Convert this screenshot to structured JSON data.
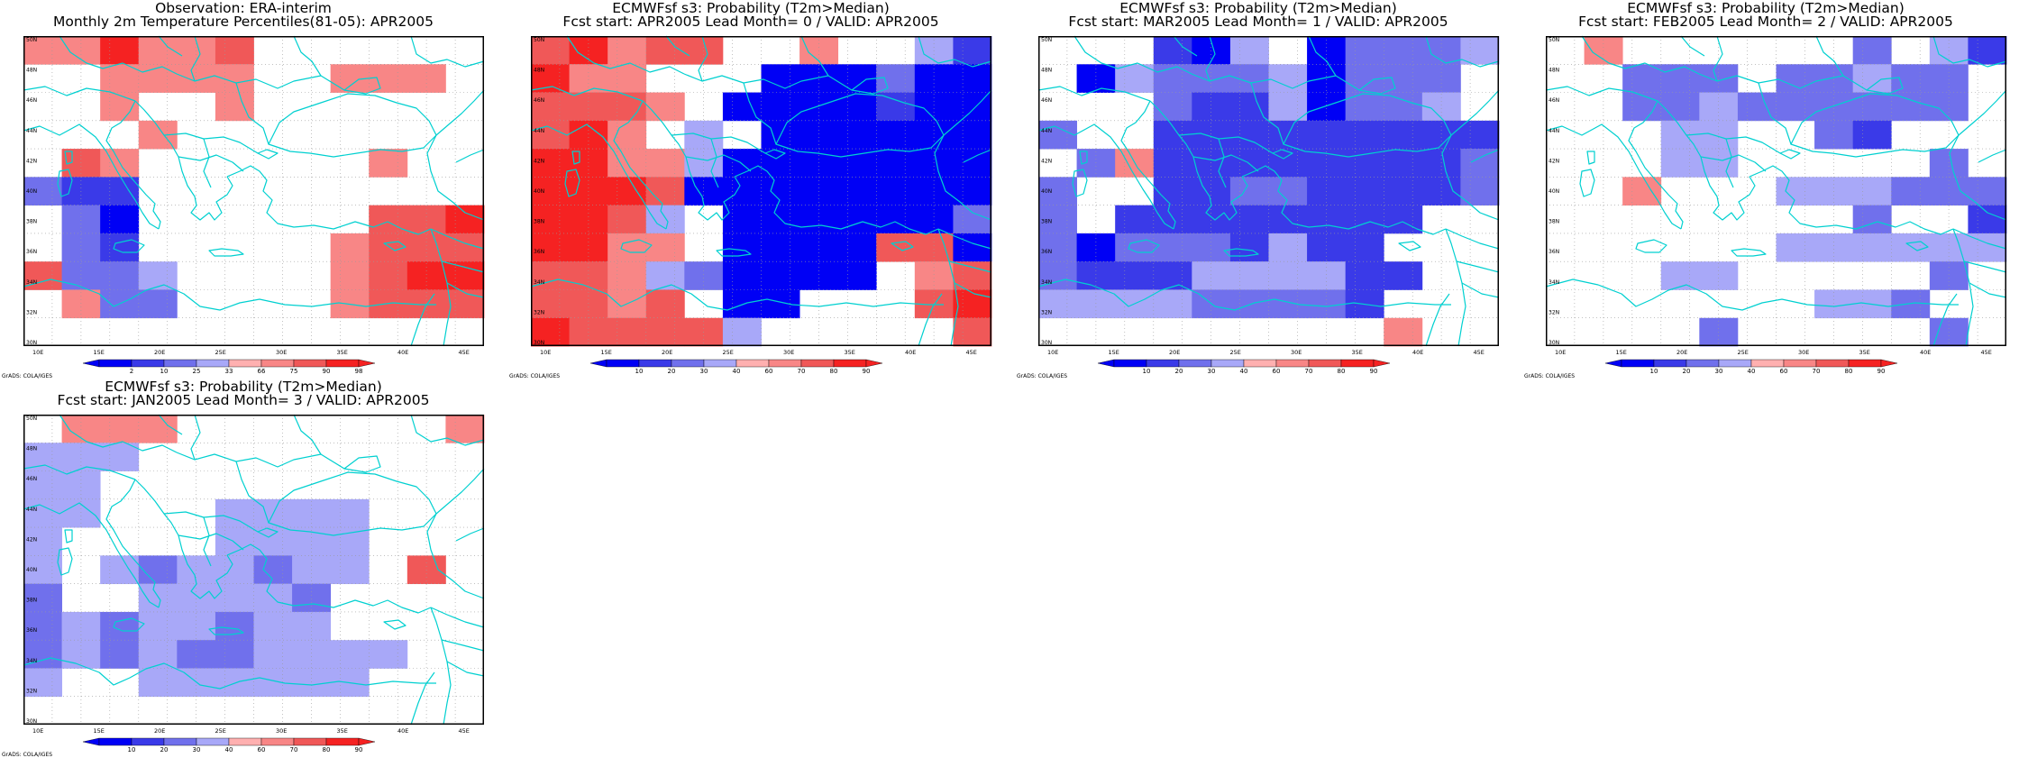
{
  "figure": {
    "grads_credit": "GrADS: COLA/IGES",
    "lat_labels": [
      "30N",
      "32N",
      "34N",
      "36N",
      "38N",
      "40N",
      "42N",
      "44N",
      "46N",
      "48N",
      "50N"
    ],
    "lon_labels": [
      "10E",
      "15E",
      "20E",
      "25E",
      "30E",
      "35E",
      "40E",
      "45E"
    ]
  },
  "colors": {
    "blue": [
      "#0000f5",
      "#3a3ae8",
      "#7070ec",
      "#a8a8f8"
    ],
    "red": [
      "#ffb0b0",
      "#f88686",
      "#f05858",
      "#f52222"
    ],
    "coast": "#00d0d0"
  },
  "panels": [
    {
      "title_line1": "Observation: ERA-interim",
      "title_line2": "Monthly 2m Temperature Percentiles(81-05): APR2005",
      "colorbar_ticks": [
        "2",
        "10",
        "25",
        "33",
        "66",
        "75",
        "90",
        "98"
      ],
      "grid_rows": [
        "668667000000",
        "006666006660",
        "006006000000",
        "000600000000",
        "076000000600",
        "322000000000",
        "031000000778",
        "032000006777",
        "733400006788",
        "063300006777",
        "000000000000"
      ]
    },
    {
      "title_line1": "ECMWFsf s3: Probability (T2m>Median)",
      "title_line2": "Fcst start: APR2005  Lead Month= 0 / VALID: APR2005",
      "colorbar_ticks": [
        "10",
        "20",
        "30",
        "40",
        "60",
        "70",
        "80",
        "90"
      ],
      "grid_rows": [
        "786770060042",
        "866000111311",
        "777601111211",
        "786040111111",
        "886641111111",
        "888711111111",
        "887401111113",
        "886601111771",
        "776431111067",
        "776701100078",
        "877774000007"
      ]
    },
    {
      "title_line1": "ECMWFsf s3: Probability (T2m>Median)",
      "title_line2": "Fcst start: MAR2005  Lead Month= 1 / VALID: APR2005",
      "colorbar_ticks": [
        "10",
        "20",
        "30",
        "40",
        "60",
        "70",
        "80",
        "90"
      ],
      "grid_rows": [
        "000214013334",
        "014333413330",
        "000322413340",
        "300222222222",
        "036222222223",
        "300223322223",
        "302222222200",
        "313332422000",
        "322244442200",
        "444433332000",
        "000000000600"
      ]
    },
    {
      "title_line1": "ECMWFsf s3: Probability (T2m>Median)",
      "title_line2": "Fcst start: FEB2005  Lead Month= 2 / VALID: APR2005",
      "colorbar_ticks": [
        "10",
        "20",
        "30",
        "40",
        "60",
        "70",
        "80",
        "90"
      ],
      "grid_rows": [
        "060000003042",
        "003330334330",
        "003343333330",
        "000440032000",
        "000440000030",
        "006000444333",
        "000000003002",
        "000000444444",
        "000440000030",
        "000000044300",
        "000030000030"
      ]
    },
    {
      "title_line1": "ECMWFsf s3: Probability (T2m>Median)",
      "title_line2": "Fcst start: JAN2005  Lead Month= 3 / VALID: APR2005",
      "colorbar_ticks": [
        "10",
        "20",
        "30",
        "40",
        "60",
        "70",
        "80",
        "90"
      ],
      "grid_rows": [
        "066600000006",
        "444000000000",
        "440000000000",
        "440004444000",
        "400004444000",
        "404344344070",
        "300444430000",
        "343443440000",
        "343433444400",
        "400444444000",
        "000000000000"
      ]
    }
  ]
}
